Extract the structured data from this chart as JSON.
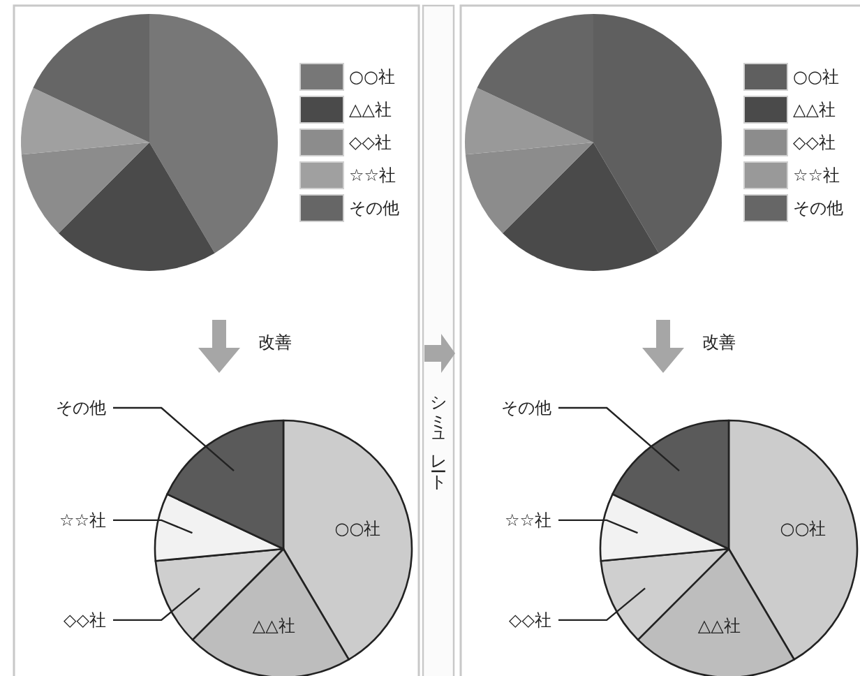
{
  "chart_data": [
    {
      "type": "pie",
      "categories": [
        "○○社",
        "△△社",
        "◇◇社",
        "☆☆社",
        "その他"
      ],
      "values": [
        41.5,
        21,
        11,
        8.5,
        18
      ],
      "colors": [
        "#777777",
        "#4a4a4a",
        "#8c8c8c",
        "#a0a0a0",
        "#666666"
      ],
      "legend": "right",
      "annotations": [
        "改善"
      ]
    },
    {
      "type": "pie",
      "categories": [
        "○○社",
        "△△社",
        "◇◇社",
        "☆☆社",
        "その他"
      ],
      "values": [
        41.5,
        21,
        11,
        8.5,
        18
      ],
      "colors": [
        "#5f5f5f",
        "#4a4a4a",
        "#8c8c8c",
        "#999999",
        "#666666"
      ],
      "legend": "right",
      "annotations": [
        "改善",
        "シミュレート"
      ]
    },
    {
      "type": "pie",
      "categories": [
        "○○社",
        "△△社",
        "◇◇社",
        "☆☆社",
        "その他"
      ],
      "values": [
        41.5,
        21,
        11,
        8.5,
        18
      ],
      "colors": [
        "#cccccc",
        "#bdbdbd",
        "#cfcfcf",
        "#f2f2f2",
        "#5a5a5a"
      ],
      "legend": false
    },
    {
      "type": "pie",
      "categories": [
        "○○社",
        "△△社",
        "◇◇社",
        "☆☆社",
        "その他"
      ],
      "values": [
        41.5,
        21,
        11,
        8.5,
        18
      ],
      "colors": [
        "#cccccc",
        "#bdbdbd",
        "#cfcfcf",
        "#f2f2f2",
        "#5a5a5a"
      ],
      "legend": false
    }
  ]
}
